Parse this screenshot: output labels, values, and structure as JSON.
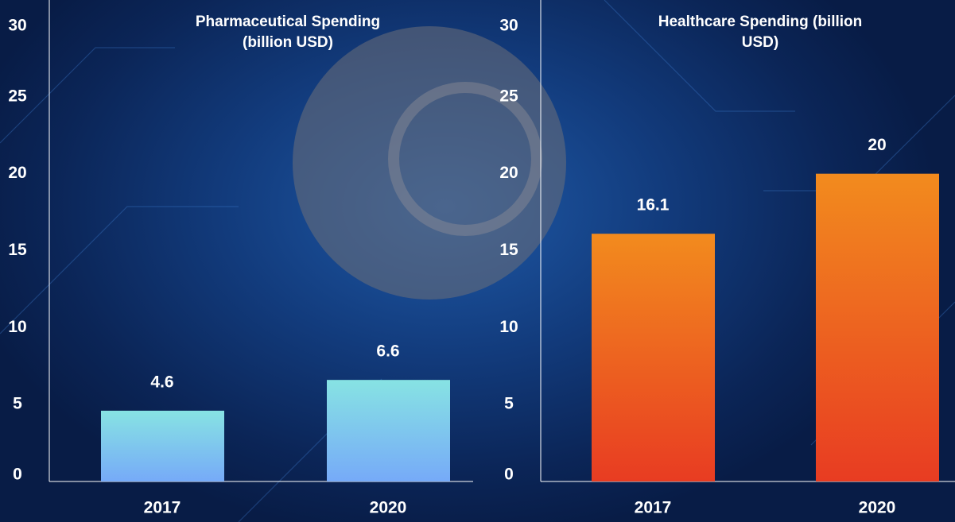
{
  "chart_data": [
    {
      "type": "bar",
      "title": "Pharmaceutical Spending (billion USD)",
      "categories": [
        "2017",
        "2020"
      ],
      "values": [
        4.6,
        6.6
      ],
      "gradient": [
        "#87e3e3",
        "#76aaf8"
      ],
      "ylim": [
        0,
        30
      ],
      "yticks": [
        0,
        5,
        10,
        15,
        20,
        25,
        30
      ]
    },
    {
      "type": "bar",
      "title": "Healthcare Spending (billion USD)",
      "categories": [
        "2017",
        "2020"
      ],
      "values": [
        16.1,
        20
      ],
      "gradient": [
        "#f28b1e",
        "#e83c22"
      ],
      "ylim": [
        0,
        30
      ],
      "yticks": [
        0,
        5,
        10,
        15,
        20,
        25,
        30
      ]
    }
  ]
}
